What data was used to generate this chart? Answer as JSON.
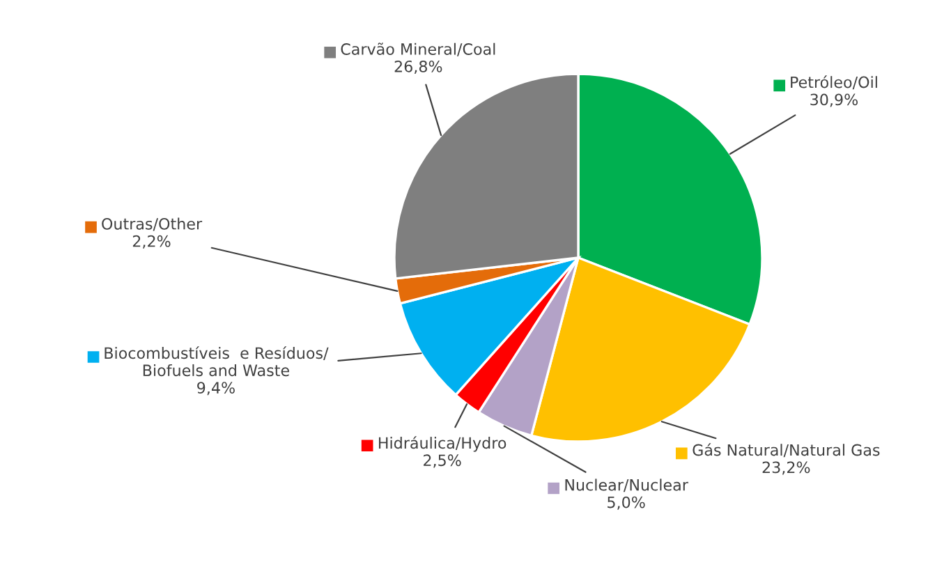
{
  "chart_data": {
    "type": "pie",
    "categories": [
      "Petróleo/Oil",
      "Gás Natural/Natural Gas",
      "Nuclear/Nuclear",
      "Hidráulica/Hydro",
      "Biocombustíveis  e Resíduos/\nBiofuels and Waste",
      "Outras/Other",
      "Carvão Mineral/Coal"
    ],
    "values": [
      30.9,
      23.2,
      5.0,
      2.5,
      9.4,
      2.2,
      26.8
    ],
    "colors": [
      "#00b050",
      "#ffc000",
      "#b3a2c7",
      "#ff0000",
      "#00b0f0",
      "#e46c0a",
      "#7f7f7f"
    ],
    "value_labels": [
      "30,9%",
      "23,2%",
      "5,0%",
      "2,5%",
      "9,4%",
      "2,2%",
      "26,8%"
    ],
    "legend": "bottom left"
  }
}
